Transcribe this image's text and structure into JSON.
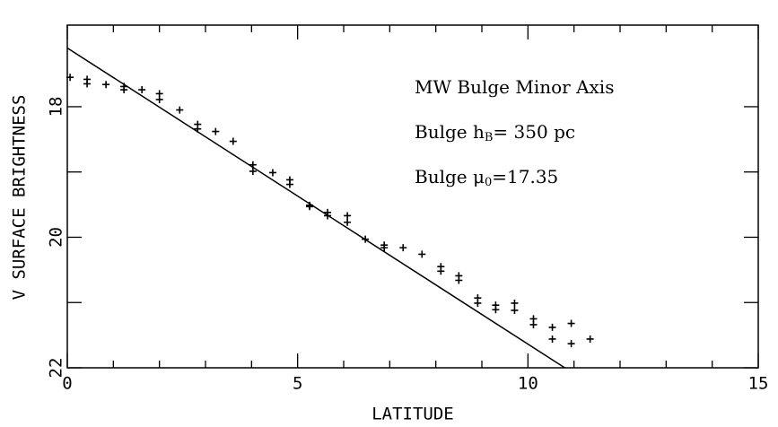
{
  "chart_data": {
    "type": "scatter",
    "xlabel": "LATITUDE",
    "ylabel": "V SURFACE BRIGHTNESS",
    "annotations": [
      {
        "text": "MW Bulge Minor Axis"
      },
      {
        "text": "Bulge h",
        "sub": "B",
        "rest": "= 350 pc"
      },
      {
        "text": "Bulge μ",
        "sub": "0",
        "rest": "=17.35"
      }
    ],
    "x": [
      0.06,
      0.43,
      0.43,
      0.84,
      1.23,
      1.23,
      1.62,
      2.0,
      2.0,
      2.44,
      2.83,
      2.83,
      3.22,
      3.6,
      4.03,
      4.03,
      4.46,
      4.83,
      4.83,
      5.26,
      5.26,
      5.65,
      5.65,
      6.08,
      6.08,
      6.47,
      6.88,
      6.88,
      7.29,
      7.7,
      8.11,
      8.11,
      8.5,
      8.5,
      8.91,
      8.91,
      9.3,
      9.3,
      9.71,
      9.71,
      10.12,
      10.12,
      10.53,
      10.53,
      10.94,
      10.94,
      11.35
    ],
    "values": [
      17.55,
      17.58,
      17.65,
      17.66,
      17.69,
      17.74,
      17.74,
      17.8,
      17.89,
      18.05,
      18.27,
      18.34,
      18.38,
      18.53,
      18.89,
      18.99,
      19.01,
      19.12,
      19.19,
      19.51,
      19.53,
      19.62,
      19.67,
      19.67,
      19.77,
      20.03,
      20.12,
      20.16,
      20.16,
      20.26,
      20.45,
      20.52,
      20.59,
      20.66,
      20.93,
      21.01,
      21.04,
      21.11,
      21.01,
      21.12,
      21.25,
      21.34,
      21.38,
      21.56,
      21.32,
      21.63,
      21.56
    ],
    "color": "#000000",
    "fit": {
      "x": [
        0,
        10.8
      ],
      "values": [
        17.1,
        22
      ]
    },
    "xlim": [
      0,
      15
    ],
    "xticks": [
      0,
      5,
      10,
      15
    ],
    "xminor_ticks": [
      1,
      2,
      3,
      4,
      6,
      7,
      8,
      9,
      11,
      12,
      13,
      14
    ],
    "ylim": [
      22,
      16.75
    ],
    "yticks": [
      18,
      20,
      22
    ],
    "yminor_ticks": [
      19,
      21
    ]
  }
}
